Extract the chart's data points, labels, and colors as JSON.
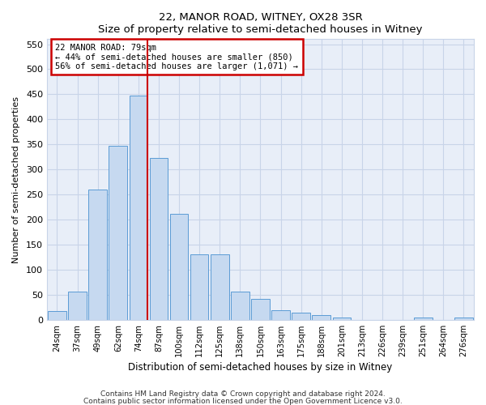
{
  "title": "22, MANOR ROAD, WITNEY, OX28 3SR",
  "subtitle": "Size of property relative to semi-detached houses in Witney",
  "xlabel": "Distribution of semi-detached houses by size in Witney",
  "ylabel": "Number of semi-detached properties",
  "footnote1": "Contains HM Land Registry data © Crown copyright and database right 2024.",
  "footnote2": "Contains public sector information licensed under the Open Government Licence v3.0.",
  "categories": [
    "24sqm",
    "37sqm",
    "49sqm",
    "62sqm",
    "74sqm",
    "87sqm",
    "100sqm",
    "112sqm",
    "125sqm",
    "138sqm",
    "150sqm",
    "163sqm",
    "175sqm",
    "188sqm",
    "201sqm",
    "213sqm",
    "226sqm",
    "239sqm",
    "251sqm",
    "264sqm",
    "276sqm"
  ],
  "values": [
    18,
    57,
    260,
    347,
    448,
    323,
    211,
    130,
    130,
    57,
    41,
    19,
    14,
    9,
    5,
    0,
    0,
    0,
    4,
    0,
    4
  ],
  "bar_color": "#c6d9f0",
  "bar_edge_color": "#5b9bd5",
  "annotation_title": "22 MANOR ROAD: 79sqm",
  "annotation_line1": "← 44% of semi-detached houses are smaller (850)",
  "annotation_line2": "56% of semi-detached houses are larger (1,071) →",
  "vline_color": "#cc0000",
  "vline_bar_index": 4,
  "ylim": [
    0,
    560
  ],
  "yticks": [
    0,
    50,
    100,
    150,
    200,
    250,
    300,
    350,
    400,
    450,
    500,
    550
  ],
  "background_color": "#ffffff",
  "plot_bg_color": "#e8eef8",
  "grid_color": "#c8d4e8"
}
